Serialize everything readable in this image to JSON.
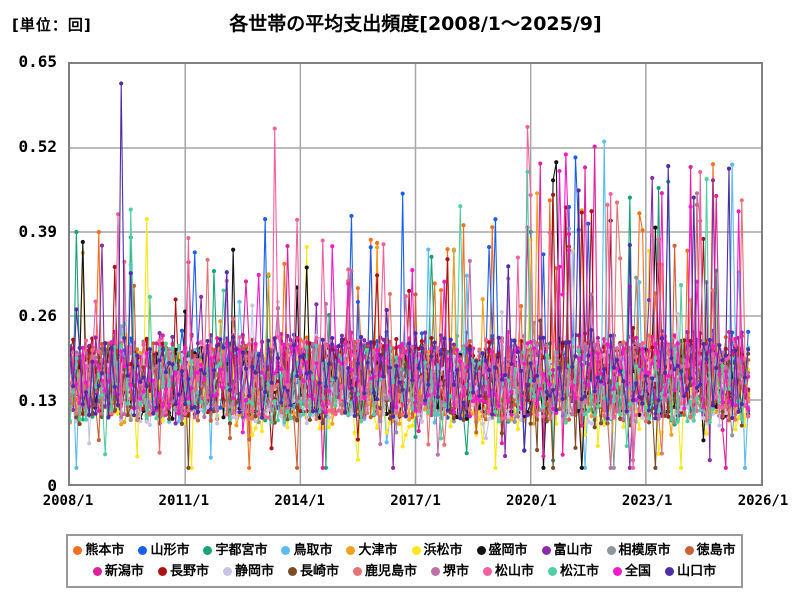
{
  "header": {
    "unit_label": "[単位：回]",
    "title": "各世帯の平均支出頻度[2008/1～2025/9]"
  },
  "chart_data": {
    "type": "line",
    "title": "各世帯の平均支出頻度[2008/1～2025/9]",
    "unit": "回",
    "x_start_label": "2008/1",
    "x_end_label": "2025/9",
    "x_ticks": [
      "2008/1",
      "2011/1",
      "2014/1",
      "2017/1",
      "2020/1",
      "2023/1",
      "2026/1"
    ],
    "y_tick_values": [
      0,
      0.13,
      0.26,
      0.39,
      0.52,
      0.65
    ],
    "y_tick_labels": [
      "0",
      "0.13",
      "0.26",
      "0.39",
      "0.52",
      "0.65"
    ],
    "ylim": [
      0,
      0.65
    ],
    "n_points": 213,
    "x_axis_span_months": 216,
    "grid": true,
    "legend_position": "bottom",
    "legend_row_size": 10,
    "marker": "circle",
    "colors": {
      "grid": "#a6a6a6",
      "plot_border": "#808080",
      "tick_text": "#000000",
      "legend_border": "#999999"
    },
    "band_description": "All 20 series fluctuate monthly, mostly between 0.05 and 0.30 (mean ~0.16), with frequent spikes 0.30-0.50; spikes become taller and more frequent after 2019.",
    "late_boost": {
      "start_month": 140,
      "prob_mult": 1.9,
      "mag_mult": 1.3
    },
    "series": [
      {
        "name": "熊本市",
        "color": "#F4701F",
        "seed": 101,
        "base": 0.165,
        "amp": 0.065,
        "spike_prob": 0.04,
        "spike_mag": 0.17,
        "dip_prob": 0.02
      },
      {
        "name": "山形市",
        "color": "#1A5FE8",
        "seed": 202,
        "base": 0.17,
        "amp": 0.068,
        "spike_prob": 0.045,
        "spike_mag": 0.19,
        "dip_prob": 0.02
      },
      {
        "name": "宇都宮市",
        "color": "#17A374",
        "seed": 303,
        "base": 0.16,
        "amp": 0.062,
        "spike_prob": 0.04,
        "spike_mag": 0.18,
        "dip_prob": 0.02
      },
      {
        "name": "鳥取市",
        "color": "#5BBBF2",
        "seed": 404,
        "base": 0.155,
        "amp": 0.06,
        "spike_prob": 0.035,
        "spike_mag": 0.17,
        "dip_prob": 0.02
      },
      {
        "name": "大津市",
        "color": "#F2A11B",
        "seed": 505,
        "base": 0.15,
        "amp": 0.06,
        "spike_prob": 0.035,
        "spike_mag": 0.15,
        "dip_prob": 0.02
      },
      {
        "name": "浜松市",
        "color": "#F8E71C",
        "seed": 606,
        "base": 0.14,
        "amp": 0.065,
        "spike_prob": 0.03,
        "spike_mag": 0.14,
        "dip_prob": 0.06
      },
      {
        "name": "盛岡市",
        "color": "#121212",
        "seed": 707,
        "base": 0.16,
        "amp": 0.06,
        "spike_prob": 0.035,
        "spike_mag": 0.16,
        "dip_prob": 0.02
      },
      {
        "name": "富山市",
        "color": "#8A2BA8",
        "seed": 808,
        "base": 0.17,
        "amp": 0.065,
        "spike_prob": 0.05,
        "spike_mag": 0.2,
        "dip_prob": 0.02
      },
      {
        "name": "相模原市",
        "color": "#8E959B",
        "seed": 909,
        "base": 0.15,
        "amp": 0.055,
        "spike_prob": 0.03,
        "spike_mag": 0.13,
        "dip_prob": 0.02
      },
      {
        "name": "徳島市",
        "color": "#CE5F33",
        "seed": 1010,
        "base": 0.16,
        "amp": 0.062,
        "spike_prob": 0.04,
        "spike_mag": 0.16,
        "dip_prob": 0.02
      },
      {
        "name": "新潟市",
        "color": "#E0219C",
        "seed": 1111,
        "base": 0.17,
        "amp": 0.066,
        "spike_prob": 0.05,
        "spike_mag": 0.2,
        "dip_prob": 0.02
      },
      {
        "name": "長野市",
        "color": "#AB1216",
        "seed": 1212,
        "base": 0.165,
        "amp": 0.062,
        "spike_prob": 0.04,
        "spike_mag": 0.18,
        "dip_prob": 0.02
      },
      {
        "name": "静岡市",
        "color": "#CBC3E6",
        "seed": 1313,
        "base": 0.145,
        "amp": 0.055,
        "spike_prob": 0.025,
        "spike_mag": 0.12,
        "dip_prob": 0.02
      },
      {
        "name": "長崎市",
        "color": "#7D4B27",
        "seed": 1414,
        "base": 0.15,
        "amp": 0.06,
        "spike_prob": 0.03,
        "spike_mag": 0.14,
        "dip_prob": 0.05
      },
      {
        "name": "鹿児島市",
        "color": "#E57373",
        "seed": 1515,
        "base": 0.155,
        "amp": 0.058,
        "spike_prob": 0.035,
        "spike_mag": 0.15,
        "dip_prob": 0.02
      },
      {
        "name": "堺市",
        "color": "#BD6FA8",
        "seed": 1616,
        "base": 0.16,
        "amp": 0.06,
        "spike_prob": 0.04,
        "spike_mag": 0.17,
        "dip_prob": 0.02
      },
      {
        "name": "松山市",
        "color": "#F2609E",
        "seed": 1717,
        "base": 0.165,
        "amp": 0.064,
        "spike_prob": 0.045,
        "spike_mag": 0.19,
        "dip_prob": 0.02
      },
      {
        "name": "松江市",
        "color": "#52CFA2",
        "seed": 1818,
        "base": 0.155,
        "amp": 0.06,
        "spike_prob": 0.04,
        "spike_mag": 0.18,
        "dip_prob": 0.02
      },
      {
        "name": "全国",
        "color": "#F21CC7",
        "seed": 1919,
        "base": 0.165,
        "amp": 0.055,
        "spike_prob": 0.04,
        "spike_mag": 0.17,
        "dip_prob": 0.02
      },
      {
        "name": "山口市",
        "color": "#4F2CA8",
        "seed": 2020,
        "base": 0.165,
        "amp": 0.065,
        "spike_prob": 0.045,
        "spike_mag": 0.19,
        "dip_prob": 0.02
      }
    ],
    "highlights": [
      {
        "series": "山口市",
        "month": 16,
        "approx_date": "2009/5",
        "value": 0.62
      },
      {
        "series": "松山市",
        "month": 64,
        "approx_date": "2013/5",
        "value": 0.55
      },
      {
        "series": "鳥取市",
        "month": 167,
        "approx_date": "2021/12",
        "value": 0.53
      },
      {
        "series": "全国",
        "month": 155,
        "approx_date": "2020/12",
        "value": 0.51
      },
      {
        "series": "新潟市",
        "month": 161,
        "approx_date": "2021/6",
        "value": 0.49
      },
      {
        "series": "盛岡市",
        "month": 151,
        "approx_date": "2020/8",
        "value": 0.47
      },
      {
        "series": "富山市",
        "month": 201,
        "approx_date": "2024/10",
        "value": 0.47
      },
      {
        "series": "堺市",
        "month": 196,
        "approx_date": "2024/5",
        "value": 0.45
      },
      {
        "series": "大津市",
        "month": 146,
        "approx_date": "2020/3",
        "value": 0.45
      },
      {
        "series": "松江市",
        "month": 122,
        "approx_date": "2018/3",
        "value": 0.43
      },
      {
        "series": "長野市",
        "month": 160,
        "approx_date": "2021/5",
        "value": 0.42
      },
      {
        "series": "山形市",
        "month": 61,
        "approx_date": "2013/2",
        "value": 0.41
      },
      {
        "series": "浜松市",
        "month": 24,
        "approx_date": "2010/1",
        "value": 0.41
      },
      {
        "series": "熊本市",
        "month": 9,
        "approx_date": "2008/10",
        "value": 0.39
      },
      {
        "series": "宇都宮市",
        "month": 2,
        "approx_date": "2008/3",
        "value": 0.39
      }
    ]
  }
}
